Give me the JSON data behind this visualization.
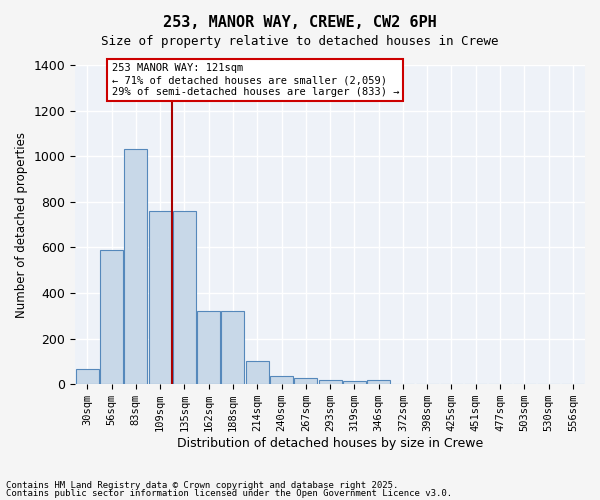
{
  "title1": "253, MANOR WAY, CREWE, CW2 6PH",
  "title2": "Size of property relative to detached houses in Crewe",
  "xlabel": "Distribution of detached houses by size in Crewe",
  "ylabel": "Number of detached properties",
  "bar_color": "#c8d8e8",
  "bar_edge_color": "#5588bb",
  "categories": [
    "30sqm",
    "56sqm",
    "83sqm",
    "109sqm",
    "135sqm",
    "162sqm",
    "188sqm",
    "214sqm",
    "240sqm",
    "267sqm",
    "293sqm",
    "319sqm",
    "346sqm",
    "372sqm",
    "398sqm",
    "425sqm",
    "451sqm",
    "477sqm",
    "503sqm",
    "530sqm",
    "556sqm"
  ],
  "values": [
    65,
    590,
    1030,
    760,
    760,
    320,
    320,
    100,
    38,
    28,
    20,
    12,
    20,
    0,
    0,
    0,
    0,
    0,
    0,
    0,
    0
  ],
  "vline_x": 3.5,
  "vline_color": "#aa0000",
  "annotation_text": "253 MANOR WAY: 121sqm\n← 71% of detached houses are smaller (2,059)\n29% of semi-detached houses are larger (833) →",
  "annotation_box_color": "#ffffff",
  "annotation_box_edge": "#cc0000",
  "ylim": [
    0,
    1400
  ],
  "yticks": [
    0,
    200,
    400,
    600,
    800,
    1000,
    1200,
    1400
  ],
  "bg_color": "#eef2f8",
  "grid_color": "#ffffff",
  "footer1": "Contains HM Land Registry data © Crown copyright and database right 2025.",
  "footer2": "Contains public sector information licensed under the Open Government Licence v3.0."
}
